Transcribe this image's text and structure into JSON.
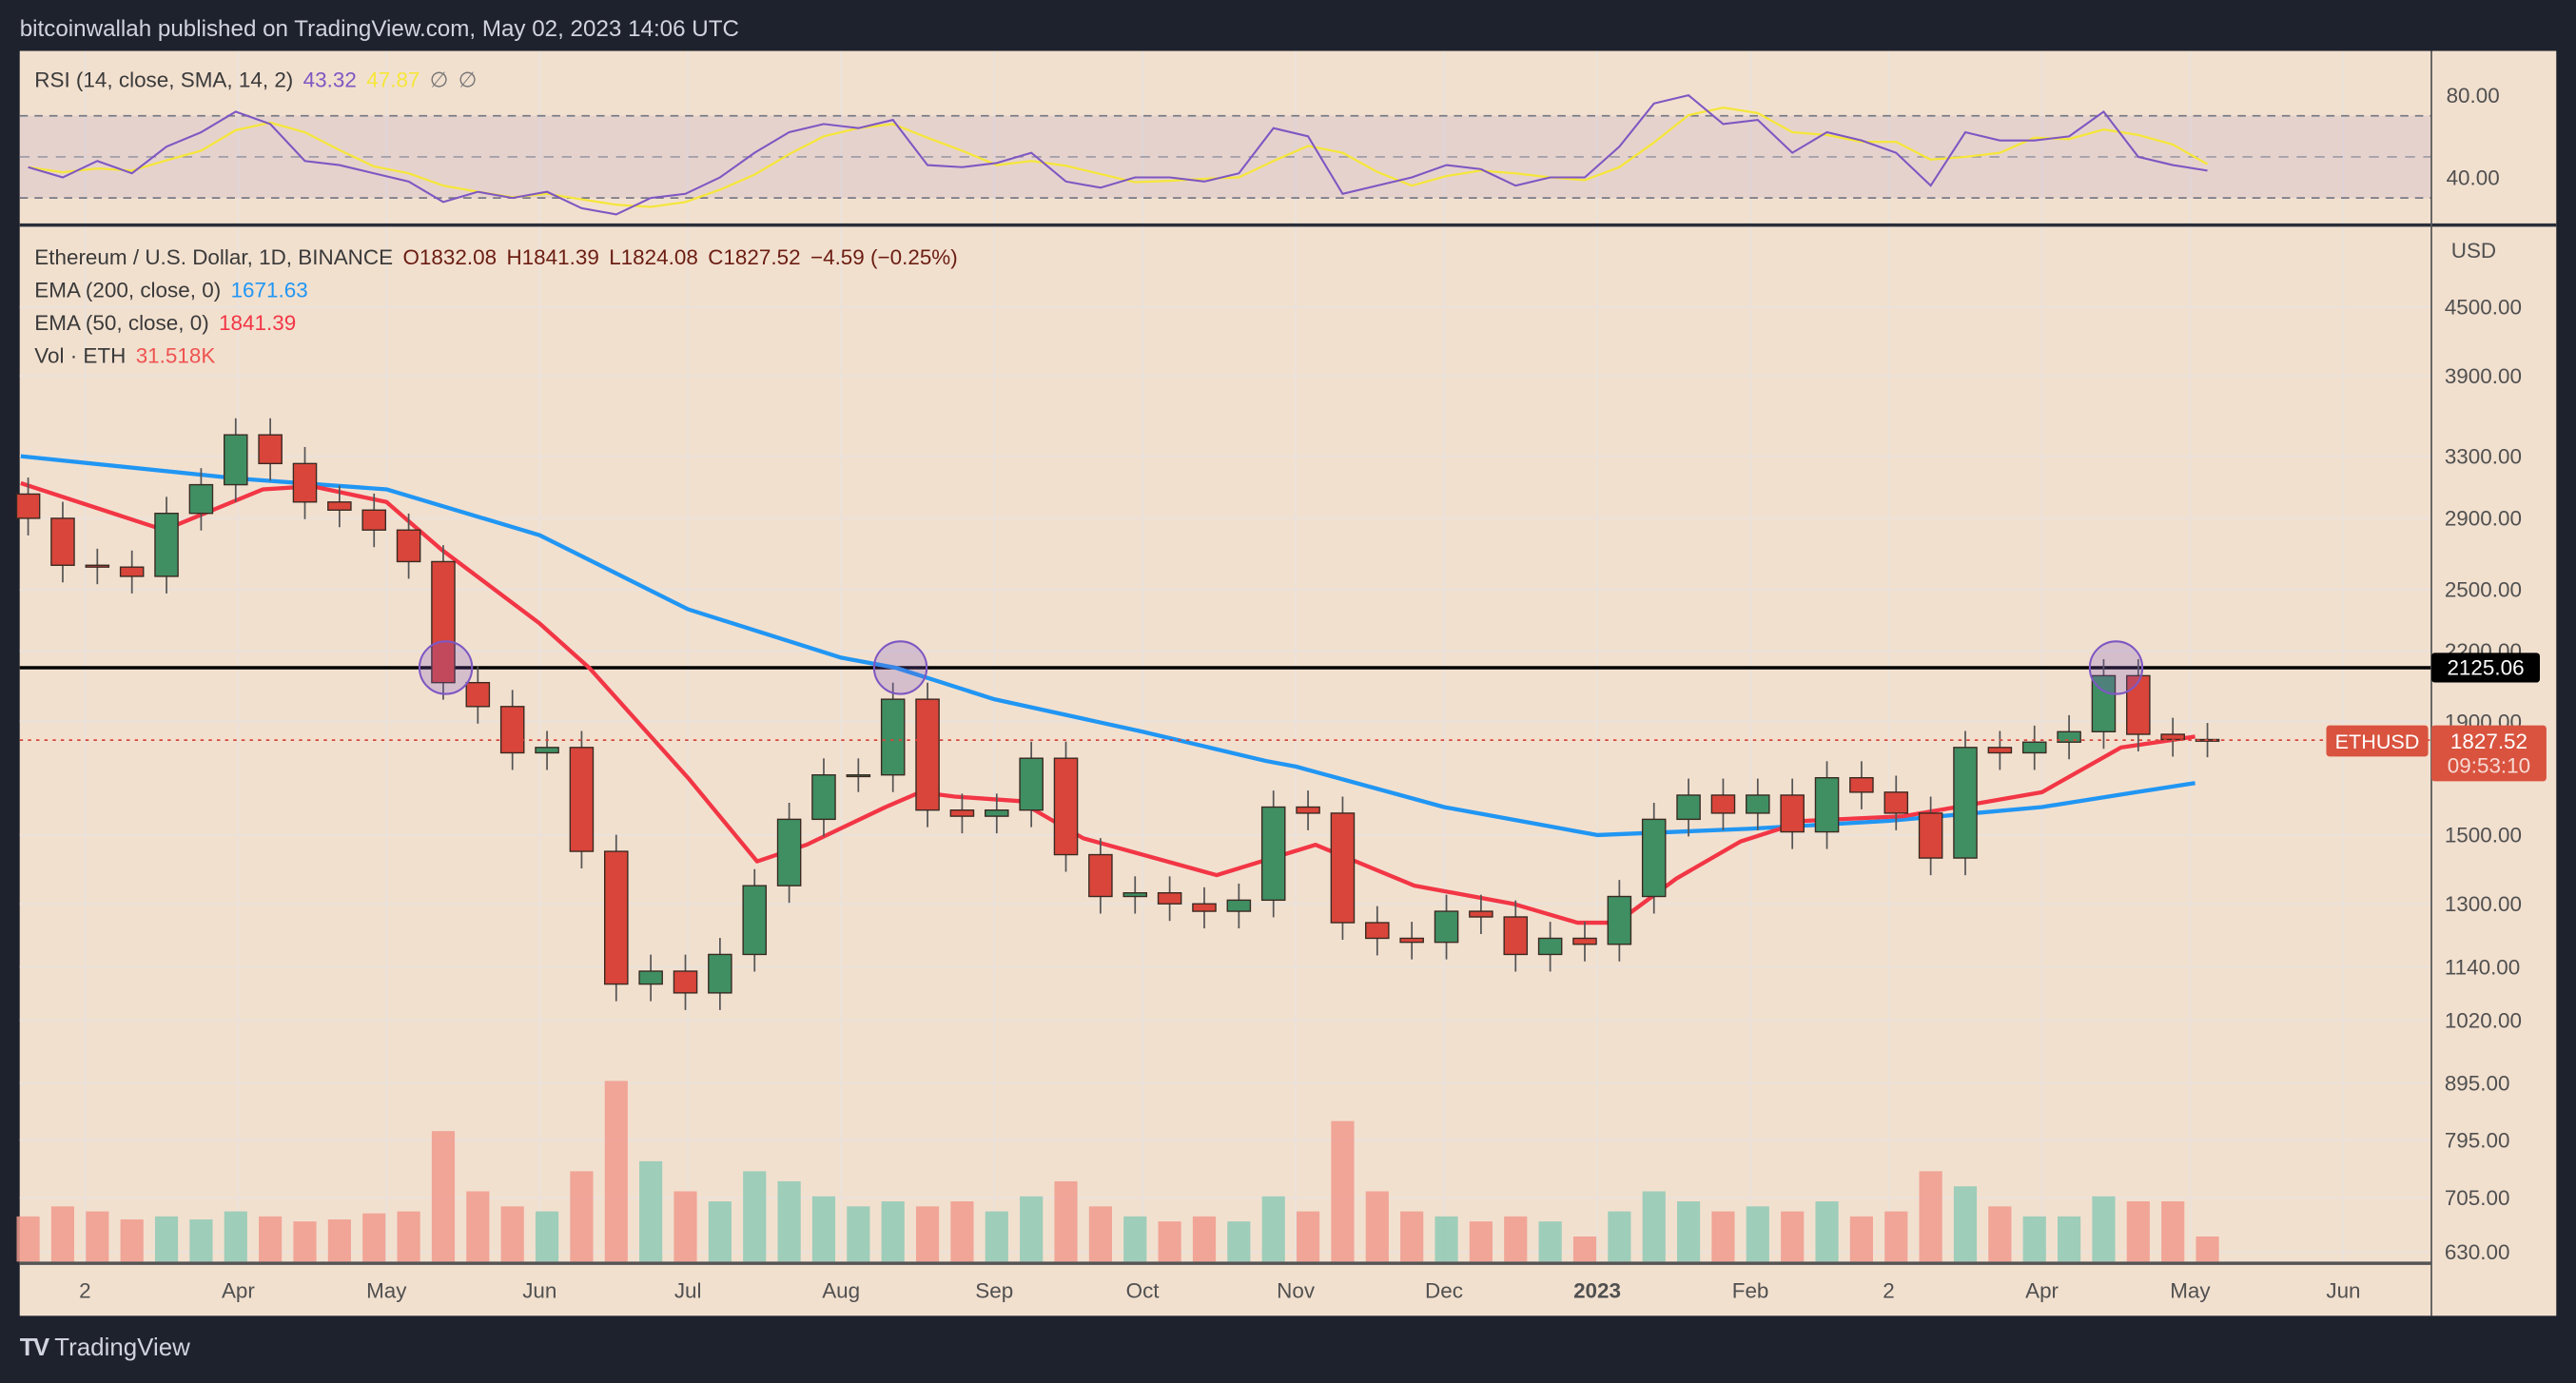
{
  "header": {
    "published": "bitcoinwallah published on TradingView.com, May 02, 2023 14:06 UTC"
  },
  "footer": {
    "brand": "TradingView"
  },
  "legend": {
    "rsi": {
      "label": "RSI (14, close, SMA, 14, 2)",
      "value": "43.32",
      "sma": "47.87",
      "extra1": "∅",
      "extra2": "∅"
    },
    "symbol": {
      "label": "Ethereum / U.S. Dollar, 1D, BINANCE",
      "o": "O1832.08",
      "h": "H1841.39",
      "l": "L1824.08",
      "c": "C1827.52",
      "change": "−4.59 (−0.25%)"
    },
    "ema200": {
      "label": "EMA (200, close, 0)",
      "value": "1671.63"
    },
    "ema50": {
      "label": "EMA (50, close, 0)",
      "value": "1841.39"
    },
    "vol": {
      "label": "Vol · ETH",
      "value": "31.518K"
    }
  },
  "price_axis": {
    "currency": "USD",
    "ticks": [
      "4500.00",
      "3900.00",
      "3300.00",
      "2900.00",
      "2500.00",
      "2200.00",
      "1900.00",
      "1500.00",
      "1300.00",
      "1140.00",
      "1020.00",
      "895.00",
      "795.00",
      "705.00",
      "630.00"
    ]
  },
  "rsi_axis": {
    "ticks": [
      "80.00",
      "40.00"
    ]
  },
  "labels": {
    "resistance": "2125.06",
    "symbol_tag": "ETHUSD",
    "last_price": "1827.52",
    "countdown": "09:53:10"
  },
  "colors": {
    "background": "#f2e0cf",
    "up": "#3f8f63",
    "down": "#d9453a",
    "ema200": "#2196f3",
    "ema50": "#f23645",
    "rsi": "#7e57c2",
    "rsi_sma": "#f5e63a",
    "resistance": "#000000",
    "marker": "#7e57c2"
  },
  "chart_data": {
    "type": "candlestick",
    "scale": "log",
    "ylim": [
      630,
      4500
    ],
    "grid": true,
    "time_axis": [
      {
        "label": "2",
        "date": "2022-03-01"
      },
      {
        "label": "Apr",
        "date": "2022-04-01"
      },
      {
        "label": "May",
        "date": "2022-05-01"
      },
      {
        "label": "Jun",
        "date": "2022-06-01"
      },
      {
        "label": "Jul",
        "date": "2022-07-01"
      },
      {
        "label": "Aug",
        "date": "2022-08-01"
      },
      {
        "label": "Sep",
        "date": "2022-09-01"
      },
      {
        "label": "Oct",
        "date": "2022-10-01"
      },
      {
        "label": "Nov",
        "date": "2022-11-01"
      },
      {
        "label": "Dec",
        "date": "2022-12-01"
      },
      {
        "label": "2023",
        "date": "2023-01-01",
        "bold": true
      },
      {
        "label": "Feb",
        "date": "2023-02-01"
      },
      {
        "label": "2",
        "date": "2023-03-01"
      },
      {
        "label": "Apr",
        "date": "2023-04-01"
      },
      {
        "label": "May",
        "date": "2023-05-01"
      },
      {
        "label": "Jun",
        "date": "2023-06-01"
      }
    ],
    "first_open": 3050,
    "candles": [
      [
        "2022-02-14",
        2900
      ],
      [
        "2022-02-21",
        2630
      ],
      [
        "2022-02-28",
        2620
      ],
      [
        "2022-03-07",
        2570
      ],
      [
        "2022-03-14",
        2930
      ],
      [
        "2022-03-21",
        3110
      ],
      [
        "2022-03-28",
        3450
      ],
      [
        "2022-04-04",
        3250
      ],
      [
        "2022-04-11",
        3000
      ],
      [
        "2022-04-18",
        2950
      ],
      [
        "2022-04-25",
        2830
      ],
      [
        "2022-05-02",
        2650
      ],
      [
        "2022-05-09",
        2060
      ],
      [
        "2022-05-16",
        1960
      ],
      [
        "2022-05-23",
        1780
      ],
      [
        "2022-05-30",
        1800
      ],
      [
        "2022-06-06",
        1450
      ],
      [
        "2022-06-13",
        1100
      ],
      [
        "2022-06-20",
        1130
      ],
      [
        "2022-06-27",
        1080
      ],
      [
        "2022-07-04",
        1170
      ],
      [
        "2022-07-11",
        1350
      ],
      [
        "2022-07-18",
        1550
      ],
      [
        "2022-07-25",
        1700
      ],
      [
        "2022-08-01",
        1700
      ],
      [
        "2022-08-08",
        1990
      ],
      [
        "2022-08-15",
        1580
      ],
      [
        "2022-08-22",
        1560
      ],
      [
        "2022-08-29",
        1580
      ],
      [
        "2022-09-05",
        1760
      ],
      [
        "2022-09-12",
        1440
      ],
      [
        "2022-09-19",
        1320
      ],
      [
        "2022-09-26",
        1330
      ],
      [
        "2022-10-03",
        1300
      ],
      [
        "2022-10-10",
        1280
      ],
      [
        "2022-10-17",
        1310
      ],
      [
        "2022-10-24",
        1590
      ],
      [
        "2022-10-31",
        1570
      ],
      [
        "2022-11-07",
        1250
      ],
      [
        "2022-11-14",
        1210
      ],
      [
        "2022-11-21",
        1200
      ],
      [
        "2022-11-28",
        1280
      ],
      [
        "2022-12-05",
        1265
      ],
      [
        "2022-12-12",
        1170
      ],
      [
        "2022-12-19",
        1210
      ],
      [
        "2022-12-26",
        1195
      ],
      [
        "2023-01-02",
        1320
      ],
      [
        "2023-01-09",
        1550
      ],
      [
        "2023-01-16",
        1630
      ],
      [
        "2023-01-23",
        1570
      ],
      [
        "2023-01-30",
        1630
      ],
      [
        "2023-02-06",
        1510
      ],
      [
        "2023-02-13",
        1690
      ],
      [
        "2023-02-20",
        1640
      ],
      [
        "2023-02-27",
        1570
      ],
      [
        "2023-03-06",
        1430
      ],
      [
        "2023-03-13",
        1800
      ],
      [
        "2023-03-20",
        1780
      ],
      [
        "2023-03-27",
        1820
      ],
      [
        "2023-04-03",
        1860
      ],
      [
        "2023-04-10",
        2090
      ],
      [
        "2023-04-17",
        1850
      ],
      [
        "2023-04-24",
        1830
      ],
      [
        "2023-05-01",
        1827.52
      ]
    ],
    "volume": [
      450,
      550,
      500,
      420,
      450,
      420,
      500,
      450,
      400,
      420,
      480,
      500,
      1300,
      700,
      550,
      500,
      900,
      1800,
      1000,
      700,
      600,
      900,
      800,
      650,
      550,
      600,
      550,
      600,
      500,
      650,
      800,
      550,
      450,
      400,
      450,
      400,
      650,
      500,
      1400,
      700,
      500,
      450,
      400,
      450,
      400,
      250,
      500,
      700,
      600,
      500,
      550,
      500,
      600,
      450,
      500,
      900,
      750,
      550,
      450,
      450,
      650,
      600,
      600,
      250
    ],
    "rsi": {
      "levels": [
        70,
        50,
        30
      ],
      "ylim": [
        20,
        90
      ],
      "values": [
        45,
        40,
        48,
        42,
        55,
        62,
        72,
        66,
        48,
        46,
        42,
        38,
        28,
        33,
        30,
        33,
        25,
        22,
        30,
        32,
        40,
        52,
        62,
        66,
        64,
        68,
        46,
        45,
        47,
        52,
        38,
        35,
        40,
        40,
        38,
        42,
        64,
        60,
        32,
        36,
        40,
        46,
        44,
        36,
        40,
        40,
        55,
        76,
        80,
        66,
        68,
        52,
        62,
        58,
        52,
        36,
        62,
        58,
        58,
        60,
        72,
        50,
        46,
        43.32
      ]
    },
    "ema200": [
      [
        "2022-02-16",
        3300
      ],
      [
        "2022-04-01",
        3150
      ],
      [
        "2022-05-01",
        3080
      ],
      [
        "2022-06-01",
        2800
      ],
      [
        "2022-07-01",
        2400
      ],
      [
        "2022-08-01",
        2170
      ],
      [
        "2022-08-12",
        2125
      ],
      [
        "2022-09-01",
        1990
      ],
      [
        "2022-10-01",
        1860
      ],
      [
        "2022-10-26",
        1750
      ],
      [
        "2022-11-01",
        1730
      ],
      [
        "2022-12-01",
        1590
      ],
      [
        "2023-01-01",
        1500
      ],
      [
        "2023-02-01",
        1520
      ],
      [
        "2023-03-01",
        1545
      ],
      [
        "2023-04-01",
        1590
      ],
      [
        "2023-04-20",
        1640
      ],
      [
        "2023-05-02",
        1671.63
      ]
    ],
    "ema50": [
      [
        "2022-02-16",
        3120
      ],
      [
        "2022-03-17",
        2830
      ],
      [
        "2022-04-06",
        3080
      ],
      [
        "2022-04-16",
        3100
      ],
      [
        "2022-05-01",
        3000
      ],
      [
        "2022-05-12",
        2720
      ],
      [
        "2022-06-01",
        2330
      ],
      [
        "2022-06-11",
        2125
      ],
      [
        "2022-07-01",
        1690
      ],
      [
        "2022-07-15",
        1420
      ],
      [
        "2022-07-25",
        1470
      ],
      [
        "2022-08-10",
        1590
      ],
      [
        "2022-08-17",
        1640
      ],
      [
        "2022-08-24",
        1625
      ],
      [
        "2022-09-06",
        1610
      ],
      [
        "2022-09-19",
        1490
      ],
      [
        "2022-10-16",
        1380
      ],
      [
        "2022-11-05",
        1470
      ],
      [
        "2022-11-25",
        1350
      ],
      [
        "2022-12-15",
        1300
      ],
      [
        "2022-12-28",
        1250
      ],
      [
        "2023-01-05",
        1250
      ],
      [
        "2023-01-17",
        1370
      ],
      [
        "2023-01-30",
        1480
      ],
      [
        "2023-02-12",
        1545
      ],
      [
        "2023-03-04",
        1560
      ],
      [
        "2023-04-01",
        1640
      ],
      [
        "2023-04-17",
        1800
      ],
      [
        "2023-05-02",
        1841.39
      ]
    ],
    "resistance": 2125.06,
    "last_price": 1827.52,
    "markers": [
      {
        "date": "2022-05-13",
        "price": 2125.06
      },
      {
        "date": "2022-08-13",
        "price": 2125.06
      },
      {
        "date": "2023-04-16",
        "price": 2125.06
      }
    ]
  }
}
